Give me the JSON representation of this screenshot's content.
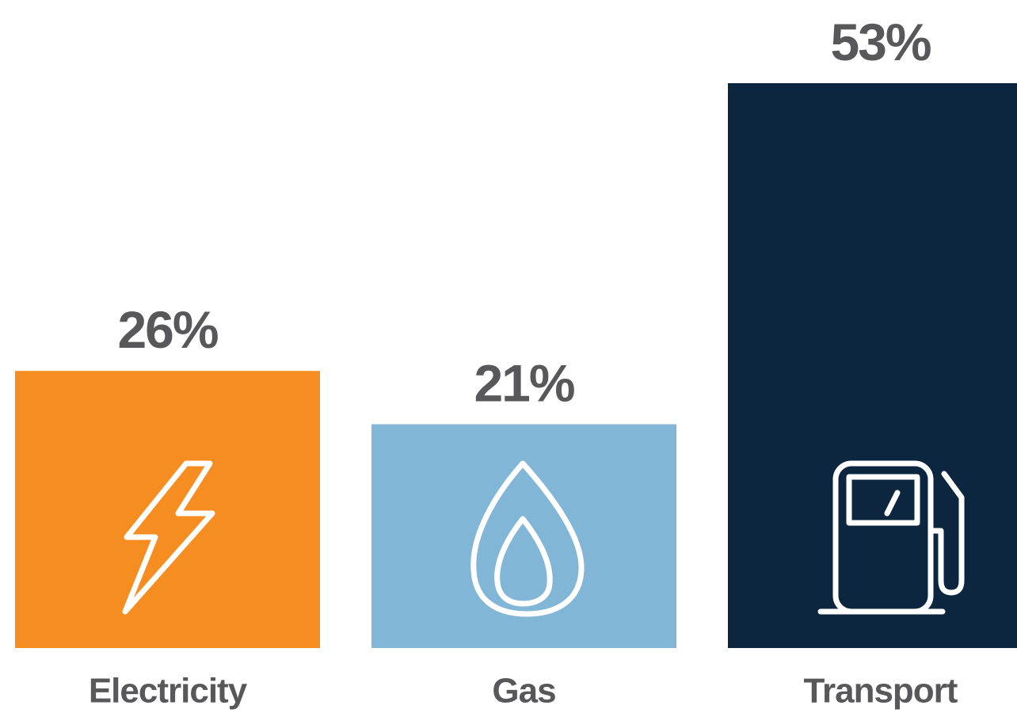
{
  "chart_data": {
    "type": "bar",
    "categories": [
      "Electricity",
      "Gas",
      "Transport"
    ],
    "values": [
      26,
      21,
      53
    ],
    "value_labels": [
      "26%",
      "21%",
      "53%"
    ],
    "colors": [
      "#f58d20",
      "#82b6d6",
      "#0d263f"
    ]
  }
}
